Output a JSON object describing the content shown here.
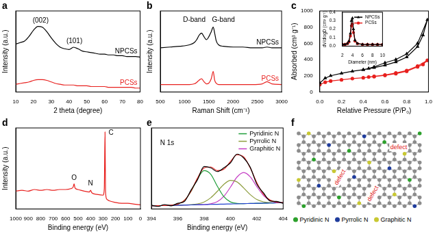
{
  "chart_data": [
    {
      "panel_label": "a",
      "type": "line",
      "x_label": "2 theta (degree)",
      "y_label": "Intensity (a.u.)",
      "x": [
        10,
        12.5,
        15,
        17.5,
        20,
        22.5,
        25,
        27.5,
        30,
        32.5,
        35,
        37.5,
        40,
        42.5,
        45,
        47.5,
        50,
        52.5,
        55,
        57.5,
        60,
        62.5,
        65,
        67.5,
        70,
        72.5,
        75,
        77.5,
        80
      ],
      "series": [
        {
          "name": "NPCSs",
          "color": "#000000",
          "values": [
            62,
            64,
            66,
            72,
            80,
            85,
            84,
            78,
            70,
            63,
            58,
            56,
            55,
            58,
            56,
            53,
            52,
            51,
            50,
            49,
            49,
            48,
            48,
            47,
            47,
            46,
            46,
            46,
            45
          ]
        },
        {
          "name": "PCSs",
          "color": "#e8201e",
          "values": [
            10,
            11,
            12,
            13,
            15,
            16,
            16,
            15,
            13,
            11,
            10,
            9,
            9,
            9,
            8,
            8,
            8,
            7,
            7,
            7,
            7,
            6,
            6,
            6,
            6,
            6,
            6,
            5,
            5
          ]
        }
      ],
      "xlim": [
        10,
        80
      ],
      "xticks": [
        10,
        20,
        30,
        40,
        50,
        60,
        70,
        80
      ],
      "ylim": [
        0,
        105
      ],
      "tick_labels": "x",
      "legend": "inline",
      "annotations": [
        {
          "text": "(002)",
          "x": 24,
          "y": 88
        },
        {
          "text": "(101)",
          "x": 43,
          "y": 61
        }
      ]
    },
    {
      "panel_label": "b",
      "type": "line",
      "x_label": "Raman Shift (cm⁻¹)",
      "y_label": "Intensity (a.u.)",
      "x": [
        500,
        700,
        900,
        1100,
        1200,
        1250,
        1300,
        1350,
        1400,
        1450,
        1500,
        1550,
        1590,
        1620,
        1650,
        1700,
        1800,
        2000,
        2200,
        2400,
        2600,
        2700,
        2800,
        3000
      ],
      "series": [
        {
          "name": "NPCSs",
          "color": "#000000",
          "values": [
            60,
            61,
            62,
            64,
            67,
            71,
            77,
            80,
            75,
            71,
            75,
            82,
            88,
            80,
            70,
            64,
            62,
            61,
            61,
            60,
            60,
            61,
            60,
            60
          ]
        },
        {
          "name": "PCSs",
          "color": "#e8201e",
          "values": [
            10,
            10,
            10,
            10,
            11,
            13,
            16,
            18,
            14,
            11,
            12,
            18,
            28,
            16,
            12,
            10,
            10,
            10,
            10,
            10,
            11,
            14,
            11,
            10
          ]
        }
      ],
      "xlim": [
        500,
        3000
      ],
      "xticks": [
        500,
        1000,
        1500,
        2000,
        2500,
        3000
      ],
      "ylim": [
        0,
        110
      ],
      "tick_labels": "x",
      "legend": "inline",
      "annotations": [
        {
          "text": "D-band",
          "x": 1200,
          "y": 93
        },
        {
          "text": "G-band",
          "x": 1800,
          "y": 93
        }
      ]
    },
    {
      "panel_label": "c",
      "type": "line",
      "x_label": "Relative Pressure (P/P₀)",
      "y_label": "Absorbed (cm³ g⁻¹)",
      "series": [
        {
          "color": "#000000",
          "marker": "triangle",
          "x": [
            0,
            0.05,
            0.1,
            0.2,
            0.3,
            0.4,
            0.5,
            0.6,
            0.7,
            0.8,
            0.9,
            0.95,
            0.99,
            0.9,
            0.8,
            0.7,
            0.6,
            0.5,
            0.45,
            0.4
          ],
          "values": [
            110,
            170,
            200,
            230,
            255,
            275,
            300,
            330,
            370,
            430,
            560,
            700,
            890,
            600,
            470,
            400,
            360,
            310,
            290,
            275
          ]
        },
        {
          "color": "#e8201e",
          "marker": "circle",
          "x": [
            0,
            0.05,
            0.1,
            0.2,
            0.3,
            0.4,
            0.5,
            0.6,
            0.7,
            0.8,
            0.9,
            0.95,
            0.99,
            0.9,
            0.8,
            0.7,
            0.6,
            0.5,
            0.45
          ],
          "values": [
            90,
            120,
            135,
            150,
            165,
            175,
            190,
            205,
            225,
            255,
            310,
            340,
            390,
            320,
            265,
            235,
            210,
            192,
            185
          ]
        }
      ],
      "xlim": [
        0,
        1
      ],
      "xticks": [
        {
          "value": 0,
          "label": "0.0"
        },
        0.2,
        0.4,
        0.6,
        0.8,
        {
          "value": 1,
          "label": "1.0"
        }
      ],
      "ylim": [
        0,
        1000
      ],
      "yticks": [
        0,
        200,
        400,
        600,
        800,
        1000
      ],
      "inset": {
        "type": "line",
        "x_label": "Diameter (nm)",
        "y_label": "dV/dlogD (cm³ g⁻¹)",
        "x": [
          2,
          2.5,
          3,
          3.3,
          3.6,
          3.8,
          4,
          4.2,
          4.5,
          5,
          6,
          7,
          8,
          9,
          10
        ],
        "series": [
          {
            "name": "NPCSs",
            "color": "#000000",
            "marker": "triangle",
            "values": [
              0.02,
              0.02,
              0.03,
              0.06,
              0.15,
              0.3,
              0.33,
              0.2,
              0.07,
              0.03,
              0.02,
              0.02,
              0.02,
              0.02,
              0.02
            ]
          },
          {
            "name": "PCSs",
            "color": "#e8201e",
            "marker": "circle",
            "values": [
              0.02,
              0.02,
              0.03,
              0.05,
              0.12,
              0.24,
              0.26,
              0.16,
              0.06,
              0.03,
              0.02,
              0.02,
              0.02,
              0.02,
              0.02
            ]
          }
        ],
        "xlim": [
          2,
          10
        ],
        "xticks": [
          2,
          4,
          6,
          8,
          10
        ],
        "ylim": [
          0,
          0.4
        ],
        "yticks": [
          {
            "value": 0,
            "label": "0.0"
          },
          0.1,
          0.2,
          0.3,
          0.4
        ],
        "legend": "top-right"
      }
    },
    {
      "panel_label": "d",
      "type": "line",
      "x_label": "Binding energy (eV)",
      "y_label": "Intensity (a.u.)",
      "x": [
        1000,
        950,
        900,
        850,
        800,
        750,
        700,
        650,
        600,
        560,
        540,
        532,
        525,
        500,
        450,
        410,
        400,
        390,
        350,
        300,
        290,
        284,
        280,
        270,
        250,
        200,
        150,
        100,
        50,
        0
      ],
      "series": [
        {
          "color": "#e8201e",
          "values": [
            22,
            23,
            22,
            24,
            23,
            24,
            23,
            24,
            24,
            25,
            27,
            31,
            26,
            24,
            22,
            21,
            23,
            20,
            18,
            17,
            25,
            95,
            22,
            12,
            10,
            8,
            7,
            7,
            6,
            5
          ]
        }
      ],
      "xlim": [
        1000,
        0
      ],
      "xticks": [
        1000,
        900,
        800,
        700,
        600,
        500,
        400,
        300,
        200,
        100,
        0
      ],
      "ylim": [
        0,
        100
      ],
      "tick_labels": "x",
      "annotations": [
        {
          "text": "O",
          "x": 532,
          "y": 34
        },
        {
          "text": "N",
          "x": 400,
          "y": 27
        },
        {
          "text": "C",
          "x": 235,
          "y": 90
        }
      ]
    },
    {
      "panel_label": "e",
      "type": "line",
      "x_label": "Binding energy (eV)",
      "x": [
        394,
        394.5,
        395,
        395.5,
        396,
        396.5,
        397,
        397.5,
        398,
        398.5,
        399,
        399.5,
        400,
        400.5,
        401,
        401.5,
        402,
        402.5,
        403,
        403.5,
        404
      ],
      "series": [
        {
          "color": "#000000",
          "values": [
            6,
            4,
            7,
            5,
            9,
            12,
            30,
            47,
            68,
            66,
            60,
            66,
            74,
            88,
            82,
            67,
            40,
            26,
            13,
            12,
            9
          ]
        },
        {
          "color": "#e8201e",
          "values": [
            5,
            5.3,
            5.5,
            6.1,
            7.7,
            13.7,
            28.2,
            49.6,
            65.8,
            67.4,
            61.6,
            63.9,
            76.1,
            86.9,
            83.8,
            66,
            42.2,
            23.9,
            14.3,
            10.8,
            10.2
          ]
        },
        {
          "color": "#2040d0",
          "values": [
            5,
            5.3,
            5.5,
            5.8,
            6,
            6.3,
            6.5,
            6.8,
            7,
            7.3,
            7.5,
            7.8,
            8,
            8.3,
            8.5,
            8.8,
            9,
            9.3,
            9.5,
            9.8,
            10
          ]
        },
        {
          "name": "Pyridinic N",
          "color": "#1f9e3a",
          "values": [
            5,
            5.3,
            5.5,
            6.1,
            7.7,
            13.7,
            27.9,
            48.3,
            61.6,
            55.8,
            36.7,
            19.7,
            11.3,
            8.9,
            8.5,
            8.8,
            9,
            9.3,
            9.5,
            9.8,
            10
          ]
        },
        {
          "name": "Pyrrolic N",
          "color": "#8c9c3c",
          "values": [
            5,
            5.3,
            5.5,
            5.8,
            6,
            6.3,
            6.8,
            8.1,
            11.2,
            17.9,
            28.2,
            39.5,
            45.8,
            43.4,
            33.8,
            23.1,
            15.2,
            11.4,
            10.1,
            9.8,
            10
          ]
        },
        {
          "name": "Graphitic N",
          "color": "#c43cc4",
          "values": [
            5,
            5.3,
            5.5,
            5.8,
            6,
            6.3,
            6.5,
            6.8,
            7,
            8.3,
            11.7,
            20.3,
            35,
            51.2,
            58.5,
            51.7,
            36,
            21.8,
            13.7,
            10.9,
            10.2
          ]
        }
      ],
      "xlim": [
        394,
        404
      ],
      "xticks": [
        394,
        396,
        398,
        400,
        402,
        404
      ],
      "ylim": [
        0,
        130
      ],
      "tick_labels": "x",
      "legend": "top-right",
      "annotations": [
        {
          "text": "N 1s",
          "x": 395.2,
          "y": 100
        }
      ]
    }
  ],
  "diagram": {
    "panel_label": "f",
    "atom_color": "#8c8c8c",
    "annotation_color": "#e02020",
    "annotations": [
      "defect",
      "defect",
      "defect"
    ],
    "legend": [
      {
        "name": "Pyridinic N",
        "color": "#2ca02c"
      },
      {
        "name": "Pyrrolic N",
        "color": "#1f3c9c"
      },
      {
        "name": "Graphitic N",
        "color": "#c8c832"
      }
    ]
  }
}
